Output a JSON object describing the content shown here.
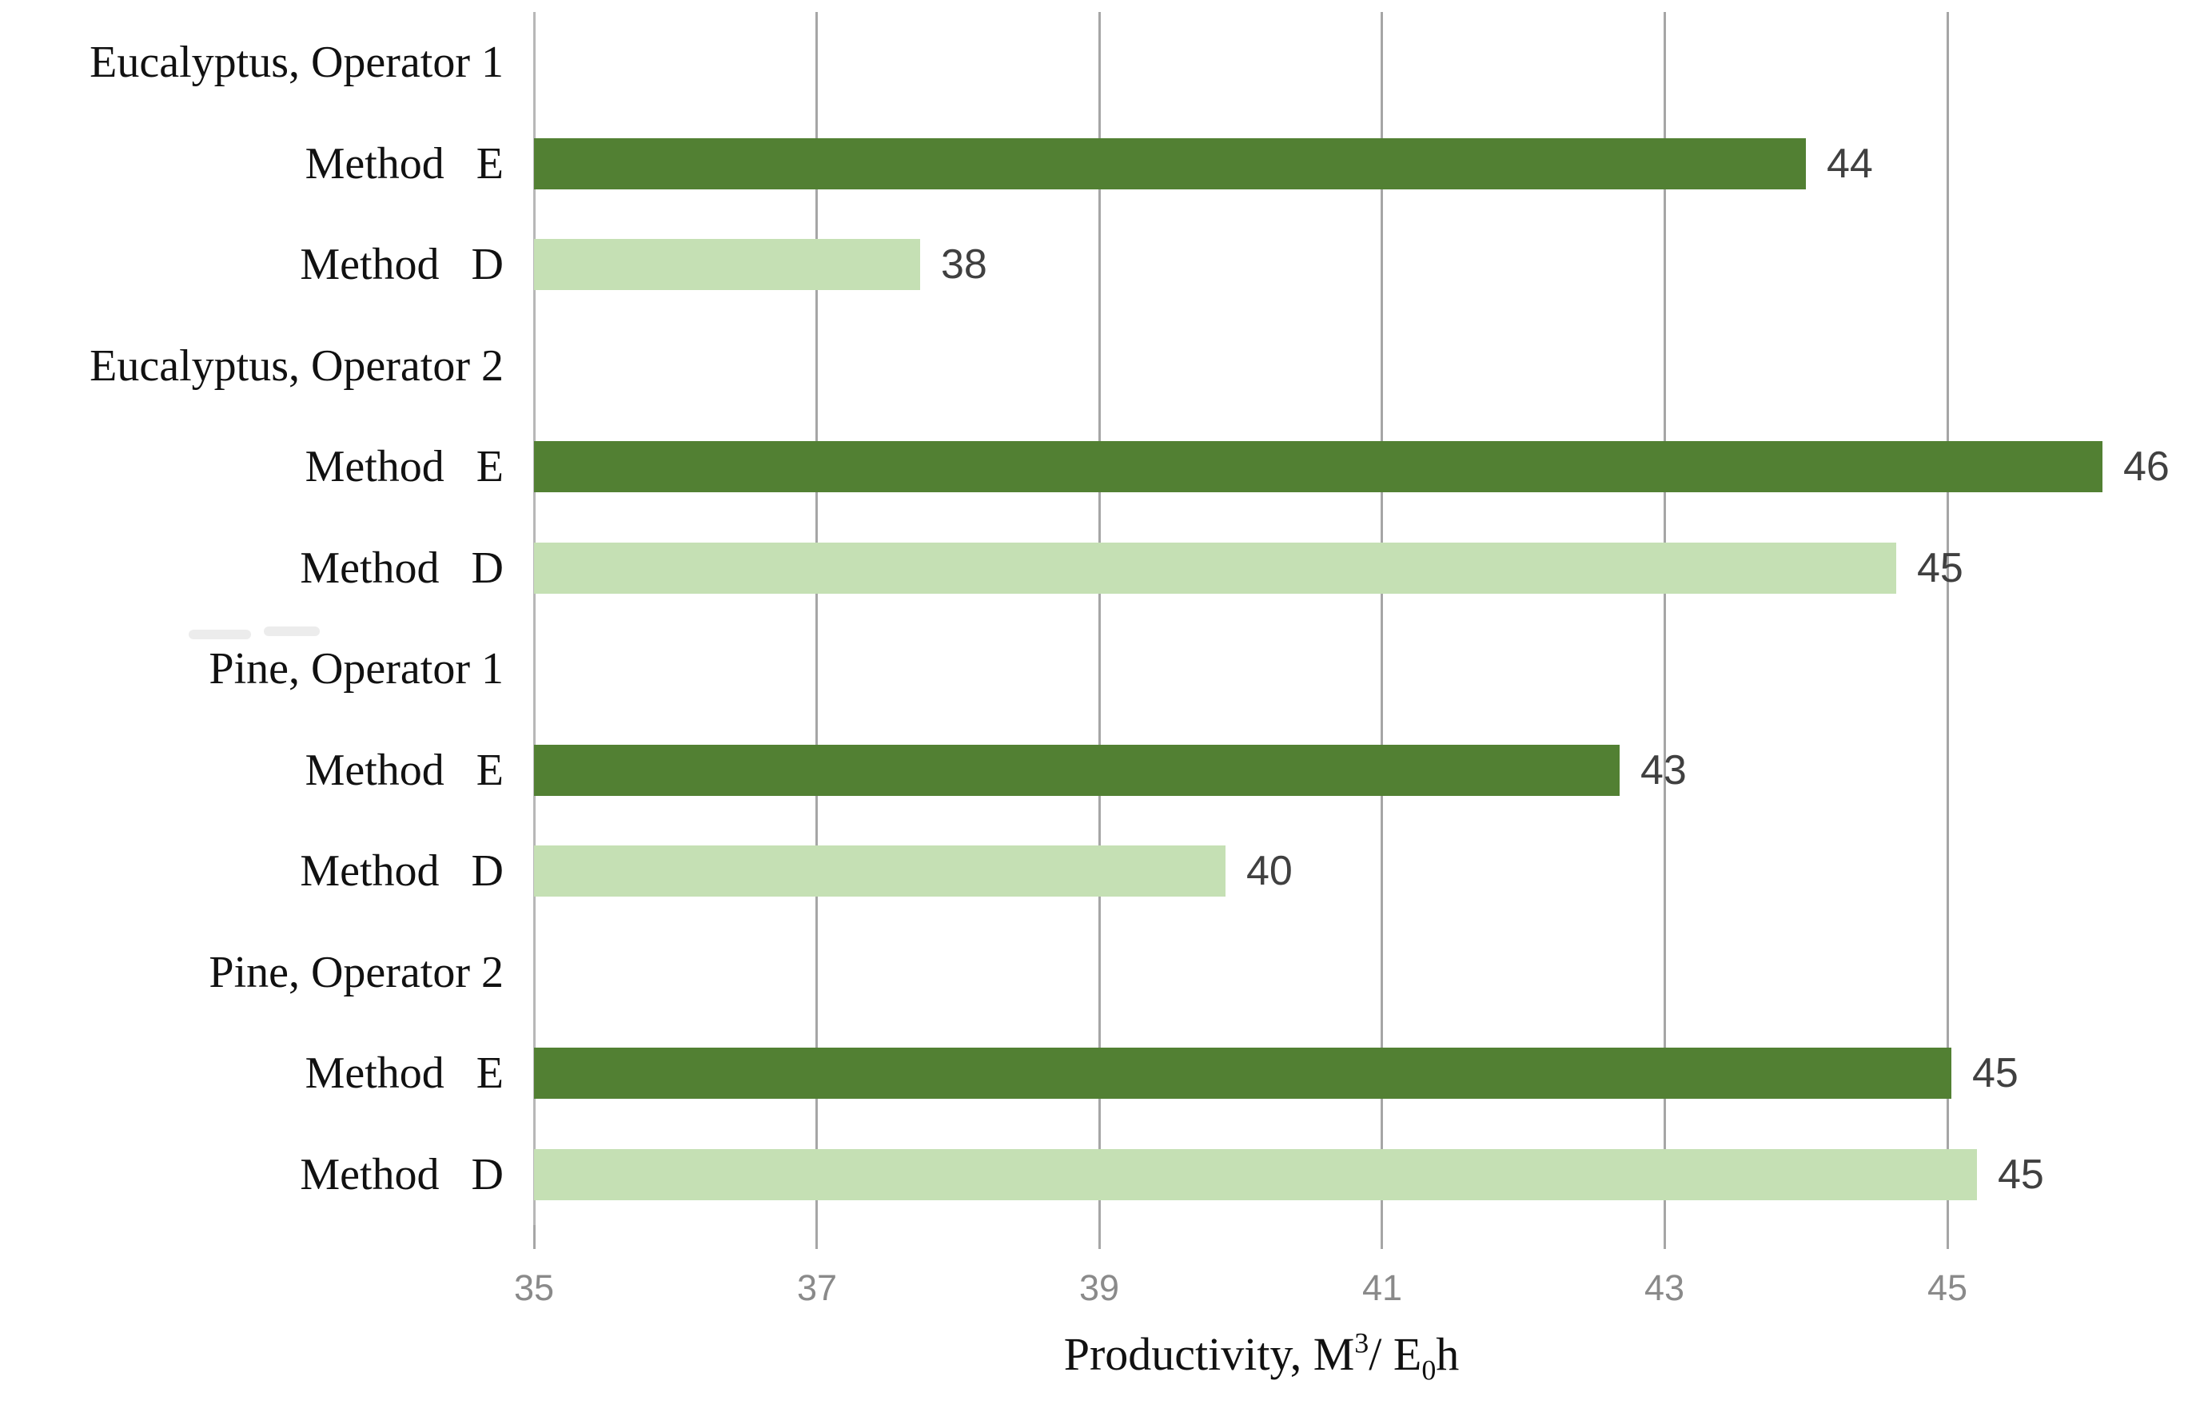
{
  "chart_data": {
    "type": "bar",
    "orientation": "horizontal",
    "title": "",
    "xlabel_text": "Productivity, M3/ E0h",
    "xlabel_parts": {
      "prefix": "Productivity, M",
      "sup": "3",
      "mid": "/ E",
      "sub": "0",
      "suffix": "h"
    },
    "xlim": [
      35,
      46.73
    ],
    "xticks": [
      35,
      37,
      39,
      41,
      43,
      45
    ],
    "grid": true,
    "legend": "none",
    "series": [
      {
        "name": "Method E",
        "color": "#528033"
      },
      {
        "name": "Method D",
        "color": "#c5e0b4"
      }
    ],
    "rows": [
      {
        "kind": "group",
        "label": "Eucalyptus, Operator 1"
      },
      {
        "kind": "bar",
        "label": "Method  E",
        "series": "Method E",
        "value": 44,
        "extent": 44.0
      },
      {
        "kind": "bar",
        "label": "Method  D",
        "series": "Method D",
        "value": 38,
        "extent": 37.73
      },
      {
        "kind": "group",
        "label": "Eucalyptus, Operator 2"
      },
      {
        "kind": "bar",
        "label": "Method  E",
        "series": "Method E",
        "value": 46,
        "extent": 46.1
      },
      {
        "kind": "bar",
        "label": "Method  D",
        "series": "Method D",
        "value": 45,
        "extent": 44.64
      },
      {
        "kind": "group",
        "label": "Pine, Operator 1"
      },
      {
        "kind": "bar",
        "label": "Method  E",
        "series": "Method E",
        "value": 43,
        "extent": 42.68
      },
      {
        "kind": "bar",
        "label": "Method  D",
        "series": "Method D",
        "value": 40,
        "extent": 39.89
      },
      {
        "kind": "group",
        "label": "Pine, Operator 2"
      },
      {
        "kind": "bar",
        "label": "Method  E",
        "series": "Method E",
        "value": 45,
        "extent": 45.03
      },
      {
        "kind": "bar",
        "label": "Method  D",
        "series": "Method D",
        "value": 45,
        "extent": 45.21
      }
    ],
    "colors": {
      "gridline": "#a6a6a6",
      "axis_line": "#b7b7b7",
      "tick_label": "#8a8a8a",
      "value_label": "#404040",
      "category_label": "#111111",
      "method_e_bar": "#528033",
      "method_d_bar": "#c5e0b4"
    }
  }
}
